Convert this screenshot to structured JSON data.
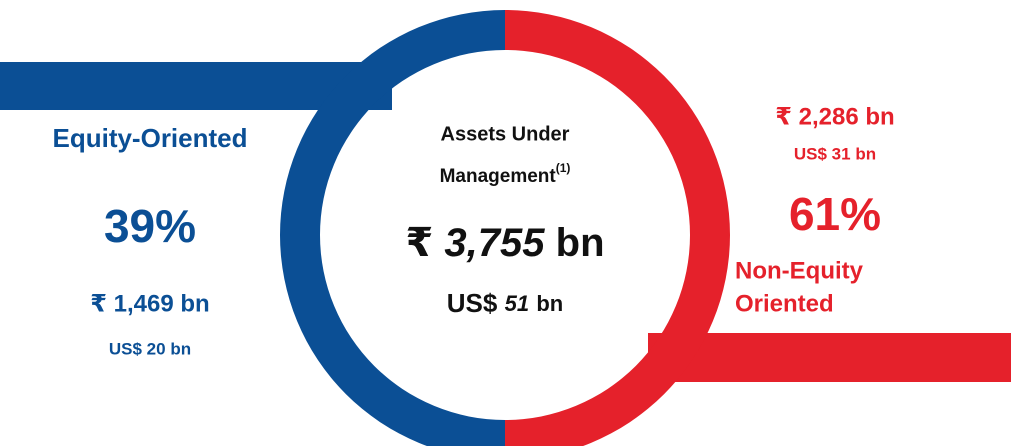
{
  "equity": {
    "label": "Equity-Oriented",
    "share": "39%",
    "local": "₹ 1,469 bn",
    "usd": "US$ 20 bn"
  },
  "center": {
    "line1": "Assets Under",
    "line2": "Management",
    "note": "(1)",
    "currency": "₹",
    "amount": "3,755",
    "unit": "bn",
    "usd_prefix": "US$",
    "usd_amount": "51",
    "usd_unit": "bn"
  },
  "non_equity": {
    "local": "₹ 2,286 bn",
    "usd": "US$ 31 bn",
    "share": "61%",
    "label_line1": "Non-Equity",
    "label_line2": "Oriented"
  }
}
